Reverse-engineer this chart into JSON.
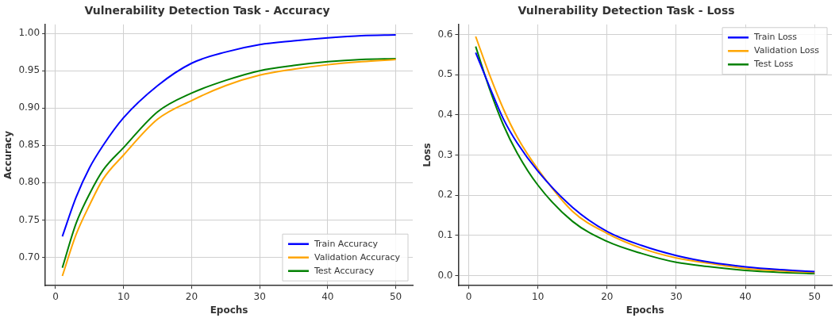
{
  "chart_data": [
    {
      "type": "line",
      "title": "Vulnerability Detection Task - Accuracy",
      "xlabel": "Epochs",
      "ylabel": "Accuracy",
      "xlim": [
        -1.5,
        52.5
      ],
      "ylim": [
        0.662,
        1.012
      ],
      "xticks": [
        0,
        10,
        20,
        30,
        40,
        50
      ],
      "yticks": [
        {
          "value": 0.7,
          "label": "0.70"
        },
        {
          "value": 0.75,
          "label": "0.75"
        },
        {
          "value": 0.8,
          "label": "0.80"
        },
        {
          "value": 0.85,
          "label": "0.85"
        },
        {
          "value": 0.9,
          "label": "0.90"
        },
        {
          "value": 0.95,
          "label": "0.95"
        },
        {
          "value": 1,
          "label": "1.00"
        }
      ],
      "grid": true,
      "legend": "bottom right",
      "marker": "none",
      "line_style": "solid",
      "x": [
        1,
        3,
        5,
        7,
        10,
        15,
        20,
        25,
        30,
        35,
        40,
        45,
        50
      ],
      "series": [
        {
          "name": "Train Accuracy",
          "color": "#0000ff",
          "values": [
            0.728,
            0.78,
            0.82,
            0.85,
            0.887,
            0.93,
            0.96,
            0.975,
            0.985,
            0.99,
            0.994,
            0.997,
            0.998
          ]
        },
        {
          "name": "Validation Accuracy",
          "color": "#ffa500",
          "values": [
            0.675,
            0.73,
            0.77,
            0.805,
            0.837,
            0.885,
            0.91,
            0.93,
            0.944,
            0.952,
            0.958,
            0.962,
            0.965
          ]
        },
        {
          "name": "Test Accuracy",
          "color": "#008000",
          "values": [
            0.686,
            0.745,
            0.785,
            0.817,
            0.847,
            0.895,
            0.92,
            0.937,
            0.95,
            0.957,
            0.962,
            0.965,
            0.966
          ]
        }
      ]
    },
    {
      "type": "line",
      "title": "Vulnerability Detection Task - Loss",
      "xlabel": "Epochs",
      "ylabel": "Loss",
      "xlim": [
        -1.5,
        52.5
      ],
      "ylim": [
        -0.025,
        0.625
      ],
      "xticks": [
        0,
        10,
        20,
        30,
        40,
        50
      ],
      "yticks": [
        {
          "value": 0,
          "label": "0.0"
        },
        {
          "value": 0.1,
          "label": "0.1"
        },
        {
          "value": 0.2,
          "label": "0.2"
        },
        {
          "value": 0.3,
          "label": "0.3"
        },
        {
          "value": 0.4,
          "label": "0.4"
        },
        {
          "value": 0.5,
          "label": "0.5"
        },
        {
          "value": 0.6,
          "label": "0.6"
        }
      ],
      "grid": true,
      "legend": "top right",
      "marker": "none",
      "line_style": "solid",
      "x": [
        1,
        3,
        5,
        7,
        10,
        15,
        20,
        25,
        30,
        35,
        40,
        45,
        50
      ],
      "series": [
        {
          "name": "Train Loss",
          "color": "#0000ff",
          "values": [
            0.555,
            0.47,
            0.39,
            0.33,
            0.26,
            0.17,
            0.11,
            0.075,
            0.05,
            0.033,
            0.022,
            0.015,
            0.01
          ]
        },
        {
          "name": "Validation Loss",
          "color": "#ffa500",
          "values": [
            0.595,
            0.5,
            0.415,
            0.345,
            0.265,
            0.16,
            0.105,
            0.068,
            0.044,
            0.03,
            0.018,
            0.012,
            0.008
          ]
        },
        {
          "name": "Test Loss",
          "color": "#008000",
          "values": [
            0.57,
            0.465,
            0.375,
            0.305,
            0.225,
            0.135,
            0.085,
            0.055,
            0.033,
            0.022,
            0.013,
            0.008,
            0.005
          ]
        }
      ]
    }
  ]
}
